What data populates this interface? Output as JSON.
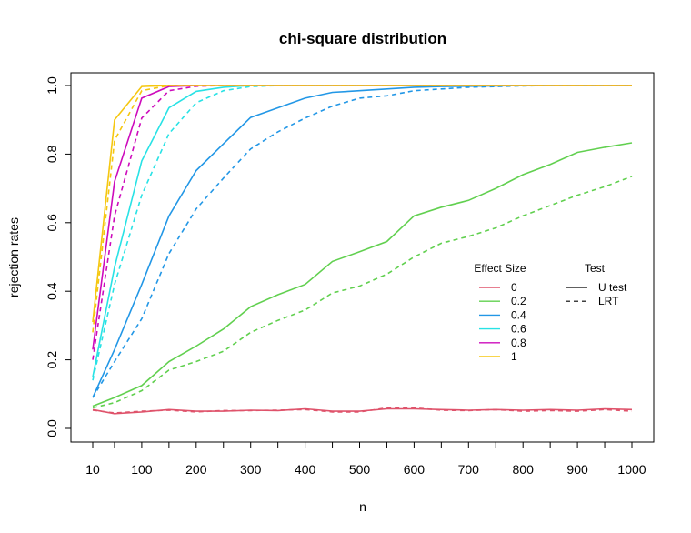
{
  "chart_data": {
    "type": "line",
    "title": "chi-square distribution",
    "xlabel": "n",
    "ylabel": "rejection rates",
    "xlim": [
      10,
      1000
    ],
    "ylim": [
      0,
      1
    ],
    "x_ticks": [
      10,
      100,
      200,
      300,
      400,
      500,
      600,
      700,
      800,
      900,
      1000
    ],
    "x_tick_labels": [
      "10",
      "100",
      "200",
      "300",
      "400",
      "500",
      "600",
      "700",
      "800",
      "900",
      "1000"
    ],
    "y_ticks": [
      0,
      0.2,
      0.4,
      0.6,
      0.8,
      1
    ],
    "y_tick_labels": [
      "0.0",
      "0.2",
      "0.4",
      "0.6",
      "0.8",
      "1.0"
    ],
    "grid": false,
    "legend_position": "right",
    "x": [
      10,
      50,
      100,
      150,
      200,
      250,
      300,
      350,
      400,
      450,
      500,
      550,
      600,
      650,
      700,
      750,
      800,
      850,
      900,
      950,
      1000
    ],
    "series": [
      {
        "effect": "0",
        "test": "U test",
        "color": "#df536b",
        "style": "solid",
        "values": [
          0.055,
          0.043,
          0.048,
          0.055,
          0.05,
          0.05,
          0.053,
          0.052,
          0.057,
          0.05,
          0.05,
          0.057,
          0.057,
          0.055,
          0.053,
          0.055,
          0.053,
          0.055,
          0.053,
          0.057,
          0.055
        ]
      },
      {
        "effect": "0",
        "test": "LRT",
        "color": "#df536b",
        "style": "dashed",
        "values": [
          0.053,
          0.045,
          0.05,
          0.053,
          0.048,
          0.052,
          0.052,
          0.053,
          0.055,
          0.048,
          0.048,
          0.06,
          0.06,
          0.053,
          0.052,
          0.055,
          0.05,
          0.052,
          0.05,
          0.055,
          0.05
        ]
      },
      {
        "effect": "0.2",
        "test": "U test",
        "color": "#61d04f",
        "style": "solid",
        "values": [
          0.065,
          0.09,
          0.125,
          0.195,
          0.24,
          0.29,
          0.355,
          0.39,
          0.42,
          0.487,
          0.515,
          0.545,
          0.62,
          0.645,
          0.665,
          0.7,
          0.74,
          0.77,
          0.805,
          0.82,
          0.833
        ]
      },
      {
        "effect": "0.2",
        "test": "LRT",
        "color": "#61d04f",
        "style": "dashed",
        "values": [
          0.06,
          0.075,
          0.11,
          0.17,
          0.195,
          0.225,
          0.28,
          0.315,
          0.345,
          0.395,
          0.415,
          0.45,
          0.5,
          0.54,
          0.56,
          0.585,
          0.62,
          0.65,
          0.68,
          0.705,
          0.735
        ]
      },
      {
        "effect": "0.4",
        "test": "U test",
        "color": "#2297e6",
        "style": "solid",
        "values": [
          0.09,
          0.23,
          0.42,
          0.62,
          0.752,
          0.83,
          0.907,
          0.935,
          0.963,
          0.98,
          0.985,
          0.99,
          0.995,
          0.997,
          0.998,
          0.999,
          1,
          1,
          1,
          1,
          1
        ]
      },
      {
        "effect": "0.4",
        "test": "LRT",
        "color": "#2297e6",
        "style": "dashed",
        "values": [
          0.09,
          0.195,
          0.32,
          0.51,
          0.64,
          0.73,
          0.815,
          0.865,
          0.905,
          0.94,
          0.963,
          0.97,
          0.985,
          0.99,
          0.995,
          0.997,
          0.999,
          1,
          1,
          1,
          1
        ]
      },
      {
        "effect": "0.6",
        "test": "U test",
        "color": "#28e2e5",
        "style": "solid",
        "values": [
          0.15,
          0.47,
          0.78,
          0.935,
          0.983,
          0.995,
          1,
          1,
          1,
          1,
          1,
          1,
          1,
          1,
          1,
          1,
          1,
          1,
          1,
          1,
          1
        ]
      },
      {
        "effect": "0.6",
        "test": "LRT",
        "color": "#28e2e5",
        "style": "dashed",
        "values": [
          0.14,
          0.42,
          0.68,
          0.86,
          0.95,
          0.985,
          0.997,
          1,
          1,
          1,
          1,
          1,
          1,
          1,
          1,
          1,
          1,
          1,
          1,
          1,
          1
        ]
      },
      {
        "effect": "0.8",
        "test": "U test",
        "color": "#cd0bbc",
        "style": "solid",
        "values": [
          0.23,
          0.72,
          0.963,
          0.997,
          1,
          1,
          1,
          1,
          1,
          1,
          1,
          1,
          1,
          1,
          1,
          1,
          1,
          1,
          1,
          1,
          1
        ]
      },
      {
        "effect": "0.8",
        "test": "LRT",
        "color": "#cd0bbc",
        "style": "dashed",
        "values": [
          0.2,
          0.62,
          0.905,
          0.985,
          0.998,
          1,
          1,
          1,
          1,
          1,
          1,
          1,
          1,
          1,
          1,
          1,
          1,
          1,
          1,
          1,
          1
        ]
      },
      {
        "effect": "1",
        "test": "U test",
        "color": "#f5c710",
        "style": "solid",
        "values": [
          0.31,
          0.9,
          0.997,
          1,
          1,
          1,
          1,
          1,
          1,
          1,
          1,
          1,
          1,
          1,
          1,
          1,
          1,
          1,
          1,
          1,
          1
        ]
      },
      {
        "effect": "1",
        "test": "LRT",
        "color": "#f5c710",
        "style": "dashed",
        "values": [
          0.28,
          0.84,
          0.985,
          1,
          1,
          1,
          1,
          1,
          1,
          1,
          1,
          1,
          1,
          1,
          1,
          1,
          1,
          1,
          1,
          1,
          1
        ]
      }
    ],
    "legend_effect": {
      "title": "Effect Size",
      "entries": [
        {
          "label": "0",
          "color": "#df536b"
        },
        {
          "label": "0.2",
          "color": "#61d04f"
        },
        {
          "label": "0.4",
          "color": "#2297e6"
        },
        {
          "label": "0.6",
          "color": "#28e2e5"
        },
        {
          "label": "0.8",
          "color": "#cd0bbc"
        },
        {
          "label": "1",
          "color": "#f5c710"
        }
      ]
    },
    "legend_test": {
      "title": "Test",
      "entries": [
        {
          "label": "U test",
          "style": "solid"
        },
        {
          "label": "LRT",
          "style": "dashed"
        }
      ]
    }
  }
}
